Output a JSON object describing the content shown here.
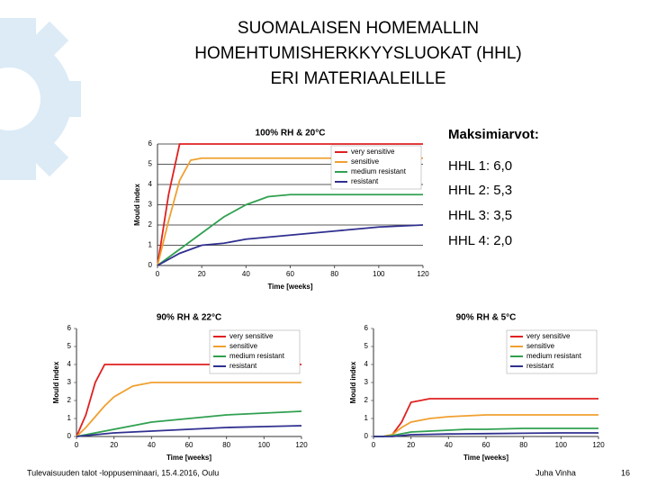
{
  "slide": {
    "title": [
      "SUOMALAISEN HOMEMALLIN",
      "HOMEHTUMISHERKKYYSLUOKAT (HHL)",
      "ERI MATERIAALEILLE"
    ],
    "maxima_title": "Maksimiarvot:",
    "maxima": [
      "HHL 1: 6,0",
      "HHL 2: 5,3",
      "HHL 3: 3,5",
      "HHL 4: 2,0"
    ],
    "footer_left": "Tulevaisuuden talot -loppuseminaari, 15.4.2016, Oulu",
    "footer_author": "Juha Vinha",
    "page_number": "16"
  },
  "chart_data": [
    {
      "type": "line",
      "title": "100% RH & 20°C",
      "x_label": "Time [weeks]",
      "y_label": "Mould index",
      "x": [
        0,
        5,
        10,
        15,
        20,
        30,
        40,
        50,
        60,
        80,
        100,
        120
      ],
      "xlim": [
        0,
        120
      ],
      "xticks": [
        0,
        20,
        40,
        60,
        80,
        100,
        120
      ],
      "ylim": [
        0,
        6
      ],
      "yticks": [
        0,
        1,
        2,
        3,
        4,
        5,
        6
      ],
      "grid": true,
      "legend": "upper right",
      "series": [
        {
          "name": "very sensitive",
          "color": "#e02020",
          "values": [
            0,
            3.5,
            6,
            6,
            6,
            6,
            6,
            6,
            6,
            6,
            6,
            6
          ]
        },
        {
          "name": "sensitive",
          "color": "#f0a030",
          "values": [
            0,
            2.2,
            4.2,
            5.2,
            5.3,
            5.3,
            5.3,
            5.3,
            5.3,
            5.3,
            5.3,
            5.3
          ]
        },
        {
          "name": "medium resistant",
          "color": "#30a050",
          "values": [
            0,
            0.4,
            0.8,
            1.2,
            1.6,
            2.4,
            3.0,
            3.4,
            3.5,
            3.5,
            3.5,
            3.5
          ]
        },
        {
          "name": "resistant",
          "color": "#303090",
          "values": [
            0,
            0.3,
            0.6,
            0.8,
            1.0,
            1.1,
            1.3,
            1.4,
            1.5,
            1.7,
            1.9,
            2.0
          ]
        }
      ]
    },
    {
      "type": "line",
      "title": "90% RH & 22°C",
      "x_label": "Time [weeks]",
      "y_label": "Mould index",
      "x": [
        0,
        5,
        10,
        15,
        20,
        30,
        40,
        50,
        60,
        80,
        100,
        120
      ],
      "xlim": [
        0,
        120
      ],
      "xticks": [
        0,
        20,
        40,
        60,
        80,
        100,
        120
      ],
      "ylim": [
        0,
        6
      ],
      "yticks": [
        0,
        1,
        2,
        3,
        4,
        5,
        6
      ],
      "grid": false,
      "legend": "upper right",
      "series": [
        {
          "name": "very sensitive",
          "color": "#e02020",
          "values": [
            0,
            1.2,
            3.0,
            4.0,
            4.0,
            4.0,
            4.0,
            4.0,
            4.0,
            4.0,
            4.0,
            4.0
          ]
        },
        {
          "name": "sensitive",
          "color": "#f0a030",
          "values": [
            0,
            0.5,
            1.1,
            1.7,
            2.2,
            2.8,
            3.0,
            3.0,
            3.0,
            3.0,
            3.0,
            3.0
          ]
        },
        {
          "name": "medium resistant",
          "color": "#30a050",
          "values": [
            0,
            0.1,
            0.2,
            0.3,
            0.4,
            0.6,
            0.8,
            0.9,
            1.0,
            1.2,
            1.3,
            1.4
          ]
        },
        {
          "name": "resistant",
          "color": "#303090",
          "values": [
            0,
            0.05,
            0.1,
            0.15,
            0.2,
            0.25,
            0.3,
            0.35,
            0.4,
            0.5,
            0.55,
            0.6
          ]
        }
      ]
    },
    {
      "type": "line",
      "title": "90% RH & 5°C",
      "x_label": "Time [weeks]",
      "y_label": "Mould index",
      "x": [
        0,
        5,
        10,
        15,
        20,
        30,
        40,
        50,
        60,
        80,
        100,
        120
      ],
      "xlim": [
        0,
        120
      ],
      "xticks": [
        0,
        20,
        40,
        60,
        80,
        100,
        120
      ],
      "ylim": [
        0,
        6
      ],
      "yticks": [
        0,
        1,
        2,
        3,
        4,
        5,
        6
      ],
      "grid": false,
      "legend": "upper right",
      "series": [
        {
          "name": "very sensitive",
          "color": "#e02020",
          "values": [
            0,
            0,
            0.1,
            0.8,
            1.9,
            2.1,
            2.1,
            2.1,
            2.1,
            2.1,
            2.1,
            2.1
          ]
        },
        {
          "name": "sensitive",
          "color": "#f0a030",
          "values": [
            0,
            0,
            0.1,
            0.5,
            0.8,
            1.0,
            1.1,
            1.15,
            1.2,
            1.2,
            1.2,
            1.2
          ]
        },
        {
          "name": "medium resistant",
          "color": "#30a050",
          "values": [
            0,
            0,
            0.05,
            0.15,
            0.25,
            0.3,
            0.35,
            0.4,
            0.4,
            0.45,
            0.45,
            0.45
          ]
        },
        {
          "name": "resistant",
          "color": "#303090",
          "values": [
            0,
            0,
            0,
            0.05,
            0.1,
            0.12,
            0.14,
            0.15,
            0.16,
            0.18,
            0.2,
            0.2
          ]
        }
      ]
    }
  ]
}
